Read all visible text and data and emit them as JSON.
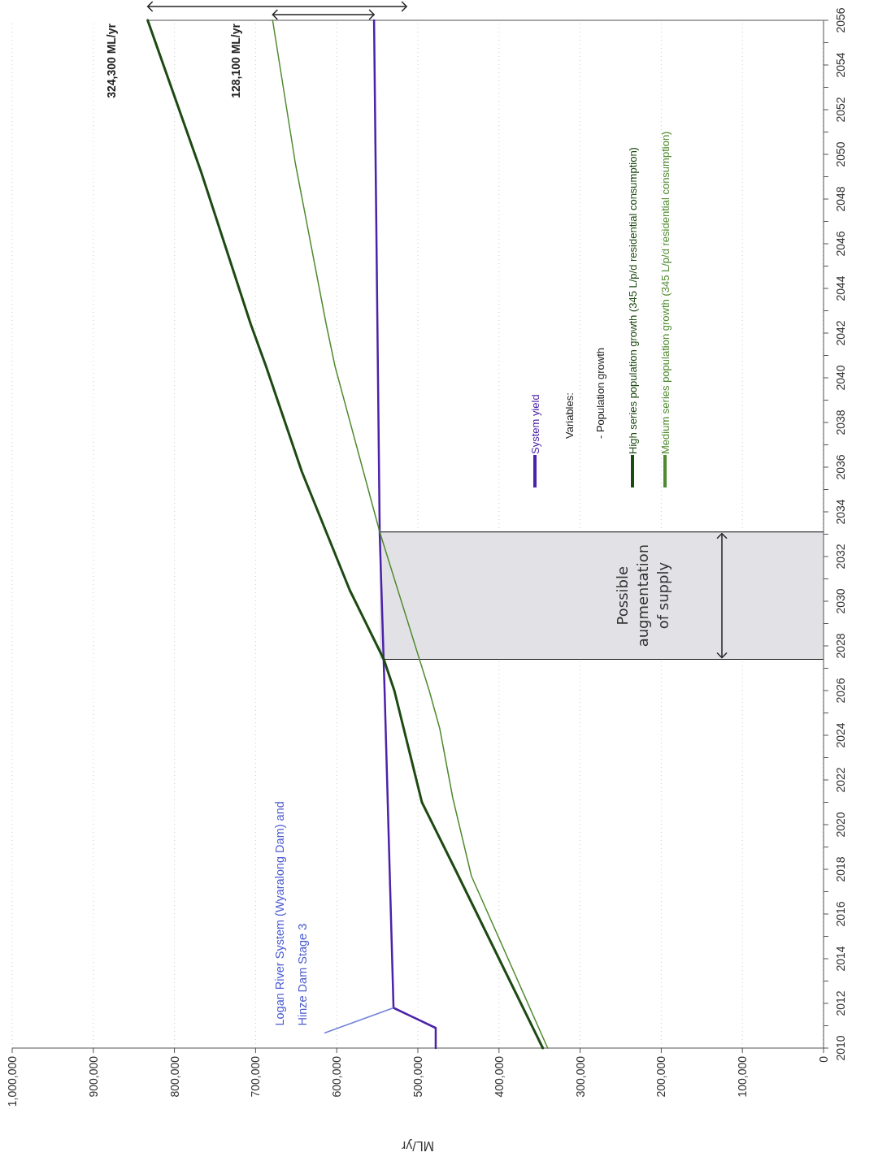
{
  "chart_data": {
    "type": "line",
    "xlabel": "ML/yr",
    "ylim": [
      2010,
      2056
    ],
    "yticks": [
      2010,
      {
        "value": 2011,
        "label": null
      },
      2012,
      {
        "value": 2013,
        "label": null
      },
      2014,
      {
        "value": 2015,
        "label": null
      },
      2016,
      {
        "value": 2017,
        "label": null
      },
      2018,
      {
        "value": 2019,
        "label": null
      },
      2020,
      {
        "value": 2021,
        "label": null
      },
      2022,
      {
        "value": 2023,
        "label": null
      },
      2024,
      {
        "value": 2025,
        "label": null
      },
      2026,
      {
        "value": 2027,
        "label": null
      },
      2028,
      {
        "value": 2029,
        "label": null
      },
      2030,
      {
        "value": 2031,
        "label": null
      },
      2032,
      {
        "value": 2033,
        "label": null
      },
      2034,
      {
        "value": 2035,
        "label": null
      },
      2036,
      {
        "value": 2037,
        "label": null
      },
      2038,
      {
        "value": 2039,
        "label": null
      },
      2040,
      {
        "value": 2041,
        "label": null
      },
      2042,
      {
        "value": 2043,
        "label": null
      },
      2044,
      {
        "value": 2045,
        "label": null
      },
      2046,
      {
        "value": 2047,
        "label": null
      },
      2048,
      {
        "value": 2049,
        "label": null
      },
      2050,
      {
        "value": 2051,
        "label": null
      },
      2052,
      {
        "value": 2053,
        "label": null
      },
      2054,
      {
        "value": 2055,
        "label": null
      },
      2056
    ],
    "xlim": [
      1000000,
      0
    ],
    "xticks": [
      0,
      {
        "value": 100000,
        "label": "100,000"
      },
      {
        "value": 200000,
        "label": "200,000"
      },
      {
        "value": 300000,
        "label": "300,000"
      },
      {
        "value": 400000,
        "label": "400,000"
      },
      {
        "value": 500000,
        "label": "500,000"
      },
      {
        "value": 600000,
        "label": "600,000"
      },
      {
        "value": 700000,
        "label": "700,000"
      },
      {
        "value": 800000,
        "label": "800,000"
      },
      {
        "value": 900000,
        "label": "900,000"
      },
      {
        "value": 1000000,
        "label": "1,000,000"
      }
    ],
    "grid": "x",
    "legend": "right",
    "marker": "none",
    "line_style": "solid",
    "series": [
      {
        "name": "System yield",
        "color": "#4b22a8",
        "values": [
          2010,
          2010.9,
          2011.8,
          2026,
          2033,
          2056
        ],
        "x": [
          478000,
          478000,
          530000,
          541000,
          547000,
          554000
        ]
      },
      {
        "name": "High series population growth (345 L/p/d residential consumption)",
        "color": "#1d4a12",
        "values": [
          2010,
          2014,
          2018,
          2021,
          2026,
          2027.4,
          2030.5,
          2035.8,
          2040.5,
          2042.4,
          2049.2,
          2056
        ],
        "x": [
          346000,
          400000,
          454000,
          495000,
          529000,
          542000,
          584000,
          643000,
          687000,
          706000,
          767000,
          833000
        ]
      },
      {
        "name": "Medium series population growth (345 L/p/d residential consumption)",
        "color": "#4f8a2f",
        "values": [
          2010,
          2017.7,
          2021.2,
          2024.3,
          2026,
          2033.1,
          2040.5,
          2042.4,
          2049.6,
          2056
        ],
        "x": [
          340000,
          434000,
          457000,
          473000,
          486000,
          547000,
          602000,
          613000,
          651000,
          679000
        ]
      }
    ],
    "ref_lines": [
      {
        "axis": "y",
        "value": 2027.4,
        "color": "#111111"
      },
      {
        "axis": "y",
        "value": 2033.1,
        "color": "#111111"
      }
    ],
    "bands": [
      {
        "axis": "y",
        "from": 2027.4,
        "to": 2033.1,
        "label": "Possible\naugmentation\nof supply",
        "color": "#e2e2e6"
      }
    ],
    "annotations": [
      "324,300 ML/yr",
      "128,100 ML/yr",
      "Logan River System (Wyaralong Dam) and\nHinze Dam Stage 3",
      "Variables:",
      "- Population growth"
    ]
  }
}
